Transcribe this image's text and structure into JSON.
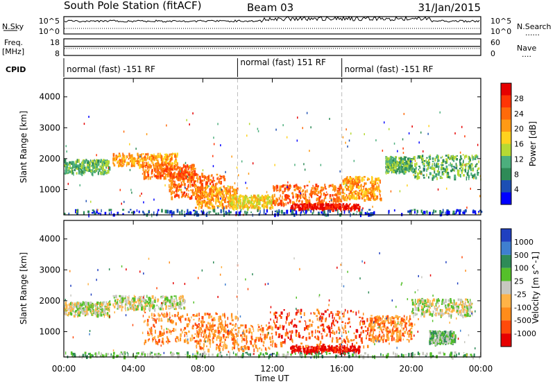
{
  "header": {
    "station": "South Pole Station (fitACF)",
    "beam": "Beam 03",
    "date": "31/Jan/2015"
  },
  "noise_panel": {
    "left_label": "N.Sky",
    "left_ticks": [
      "10^5",
      "10^0"
    ],
    "right_ticks": [
      "10^5",
      "10^0"
    ],
    "right_label": "N.Search",
    "right_key": "......"
  },
  "freq_panel": {
    "left_label_line1": "Freq.",
    "left_label_line2": "[MHz]",
    "left_ticks": [
      "18",
      "8"
    ],
    "right_ticks": [
      "60",
      "0"
    ],
    "right_label": "Nave",
    "right_key": "...."
  },
  "cpid": {
    "label": "CPID",
    "segments": [
      {
        "text": "normal (fast) -151 RF",
        "start_hour": 0,
        "end_hour": 10
      },
      {
        "text": "normal (fast) 151 RF",
        "start_hour": 10,
        "end_hour": 16
      },
      {
        "text": "normal (fast) -151 RF",
        "start_hour": 16,
        "end_hour": 24
      }
    ]
  },
  "x_axis": {
    "label": "Time UT",
    "ticks": [
      "00:00",
      "04:00",
      "08:00",
      "12:00",
      "16:00",
      "20:00",
      "00:00"
    ],
    "range_hours": [
      0,
      24
    ]
  },
  "y_axis": {
    "label": "Slant Range [km]",
    "ticks": [
      "1000",
      "2000",
      "3000",
      "4000"
    ],
    "range_km": [
      180,
      4600
    ]
  },
  "power_colorbar": {
    "label": "Power [dB]",
    "ticks": [
      "4",
      "8",
      "12",
      "16",
      "20",
      "24",
      "28"
    ],
    "colors": [
      "#0000ff",
      "#1c4fb4",
      "#2e8b57",
      "#4caf7d",
      "#b6d933",
      "#ffd21e",
      "#ff9a14",
      "#ff6a0a",
      "#ff3505",
      "#e60000"
    ]
  },
  "velocity_colorbar": {
    "label": "Velocity [m s^-1]",
    "ticks": [
      "1000",
      "500",
      "100",
      "25",
      "-25",
      "-100",
      "-500",
      "-1000"
    ],
    "colors": [
      "#2040c0",
      "#3f7fd0",
      "#2e8b57",
      "#55c02a",
      "#c8c8c0",
      "#ffb347",
      "#ff8c1a",
      "#ff4a0a",
      "#e60000"
    ]
  },
  "chart_data": [
    {
      "type": "heatmap",
      "title": "Power",
      "xlabel": "Time UT",
      "ylabel": "Slant Range [km]",
      "colorbar_label": "Power [dB]",
      "x_range": [
        0,
        24
      ],
      "y_range": [
        180,
        4600
      ],
      "regions": [
        {
          "t0": 0.0,
          "t1": 2.6,
          "r0": 1500,
          "r1": 1950,
          "level": 3
        },
        {
          "t0": 2.8,
          "t1": 6.5,
          "r0": 1750,
          "r1": 2150,
          "level": 6
        },
        {
          "t0": 4.5,
          "t1": 7.5,
          "r0": 1350,
          "r1": 1800,
          "level": 7
        },
        {
          "t0": 6.0,
          "t1": 9.2,
          "r0": 700,
          "r1": 1500,
          "level": 7
        },
        {
          "t0": 7.5,
          "t1": 10.0,
          "r0": 380,
          "r1": 1100,
          "level": 6
        },
        {
          "t0": 9.5,
          "t1": 12.0,
          "r0": 380,
          "r1": 800,
          "level": 5
        },
        {
          "t0": 12.0,
          "t1": 16.0,
          "r0": 480,
          "r1": 1150,
          "level": 7
        },
        {
          "t0": 13.0,
          "t1": 17.0,
          "r0": 350,
          "r1": 520,
          "level": 9
        },
        {
          "t0": 16.0,
          "t1": 18.2,
          "r0": 650,
          "r1": 1400,
          "level": 6
        },
        {
          "t0": 18.5,
          "t1": 20.0,
          "r0": 1550,
          "r1": 2050,
          "level": 3
        },
        {
          "t0": 20.0,
          "t1": 23.9,
          "r0": 1350,
          "r1": 2100,
          "level": 3
        },
        {
          "t0": 0.0,
          "t1": 24.0,
          "r0": 180,
          "r1": 330,
          "level": 1
        }
      ]
    },
    {
      "type": "heatmap",
      "title": "Velocity",
      "xlabel": "Time UT",
      "ylabel": "Slant Range [km]",
      "colorbar_label": "Velocity [m s^-1]",
      "x_range": [
        0,
        24
      ],
      "y_range": [
        180,
        4600
      ],
      "regions": [
        {
          "t0": 0.0,
          "t1": 2.6,
          "r0": 1500,
          "r1": 1950,
          "level": 4
        },
        {
          "t0": 2.8,
          "t1": 7.0,
          "r0": 1700,
          "r1": 2150,
          "level": 4
        },
        {
          "t0": 4.5,
          "t1": 10.0,
          "r0": 600,
          "r1": 1600,
          "level": 6
        },
        {
          "t0": 7.5,
          "t1": 12.0,
          "r0": 380,
          "r1": 1200,
          "level": 6
        },
        {
          "t0": 12.0,
          "t1": 17.5,
          "r0": 500,
          "r1": 1700,
          "level": 7
        },
        {
          "t0": 13.0,
          "t1": 17.0,
          "r0": 320,
          "r1": 520,
          "level": 8
        },
        {
          "t0": 17.5,
          "t1": 20.0,
          "r0": 700,
          "r1": 1500,
          "level": 6
        },
        {
          "t0": 20.0,
          "t1": 23.5,
          "r0": 1500,
          "r1": 2050,
          "level": 4
        },
        {
          "t0": 21.0,
          "t1": 22.5,
          "r0": 600,
          "r1": 1000,
          "level": 3
        },
        {
          "t0": 0.0,
          "t1": 24.0,
          "r0": 180,
          "r1": 320,
          "level": 3
        }
      ]
    }
  ]
}
